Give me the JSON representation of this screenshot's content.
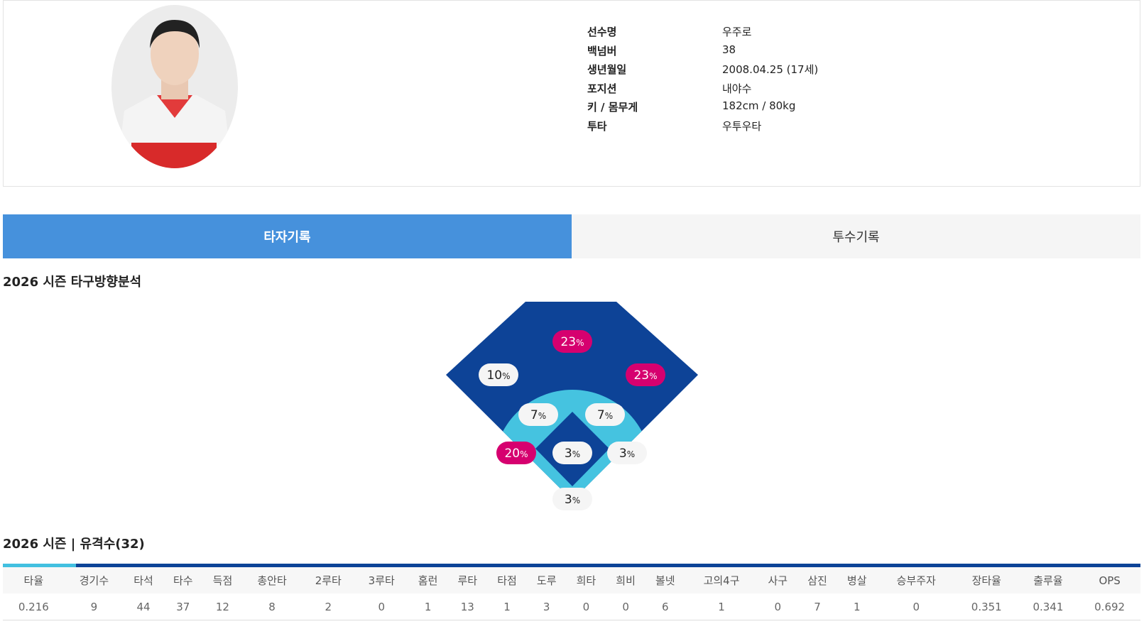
{
  "profile": {
    "rows": [
      {
        "label": "선수명",
        "value": "우주로"
      },
      {
        "label": "백넘버",
        "value": "38"
      },
      {
        "label": "생년월일",
        "value": "2008.04.25 (17세)"
      },
      {
        "label": "포지션",
        "value": "내야수"
      },
      {
        "label": "키 / 몸무게",
        "value": "182cm / 80kg"
      },
      {
        "label": "투타",
        "value": "우투우타"
      }
    ]
  },
  "tabs": [
    {
      "label": "타자기록",
      "active": true
    },
    {
      "label": "투수기록",
      "active": false
    }
  ],
  "direction": {
    "title": "2026 시즌 타구방향분석",
    "unit": "%",
    "zones": [
      {
        "value": 10,
        "highlight": false
      },
      {
        "value": 23,
        "highlight": true
      },
      {
        "value": 23,
        "highlight": true
      },
      {
        "value": 7,
        "highlight": false
      },
      {
        "value": 7,
        "highlight": false
      },
      {
        "value": 20,
        "highlight": true
      },
      {
        "value": 3,
        "highlight": false
      },
      {
        "value": 3,
        "highlight": false
      },
      {
        "value": 3,
        "highlight": false
      }
    ]
  },
  "stats": {
    "title": "2026 시즌 | 유격수(32)",
    "header": [
      "타율",
      "경기수",
      "타석",
      "타수",
      "득점",
      "총안타",
      "2루타",
      "3루타",
      "홈런",
      "루타",
      "타점",
      "도루",
      "희타",
      "희비",
      "볼넷",
      "고의4구",
      "사구",
      "삼진",
      "병살",
      "승부주자",
      "장타율",
      "출루율",
      "OPS"
    ],
    "row": [
      "0.216",
      "9",
      "44",
      "37",
      "12",
      "8",
      "2",
      "0",
      "1",
      "13",
      "1",
      "3",
      "0",
      "0",
      "6",
      "1",
      "0",
      "7",
      "1",
      "0",
      "0.351",
      "0.341",
      "0.692"
    ]
  }
}
